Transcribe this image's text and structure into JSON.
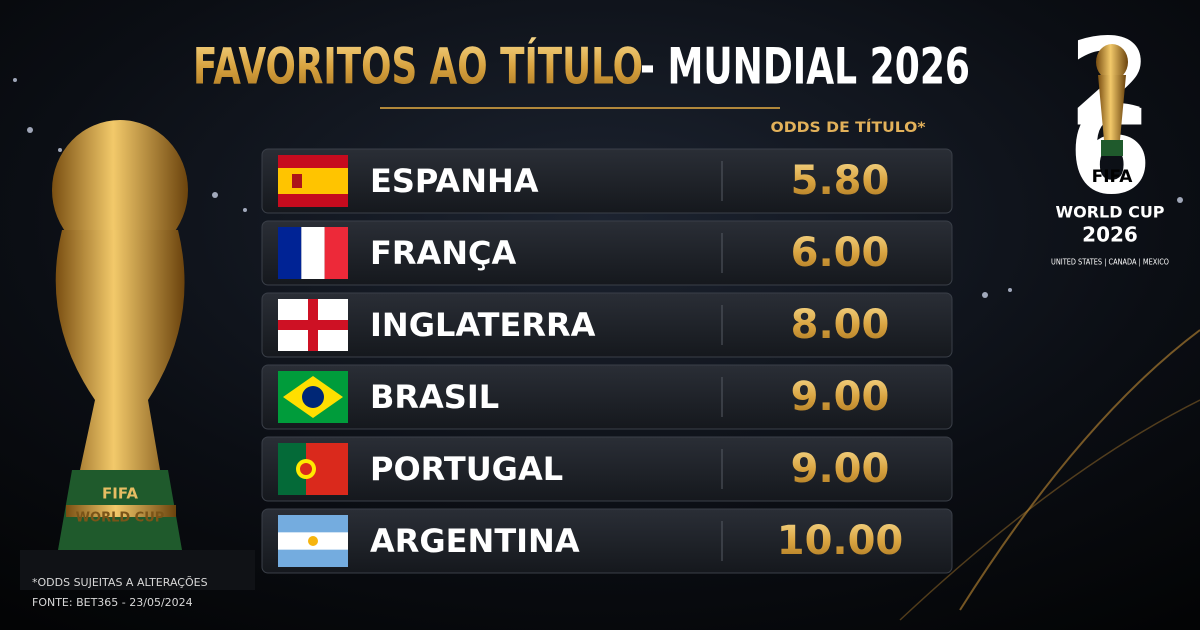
{
  "header": {
    "title_gold": "FAVORITOS AO TÍTULO",
    "title_white": "- MUNDIAL 2026"
  },
  "table": {
    "column_header": "ODDS DE TÍTULO*",
    "rows": [
      [
        "ESPANHA",
        "5.80"
      ],
      [
        "FRANÇA",
        "6.00"
      ],
      [
        "INGLATERRA",
        "8.00"
      ],
      [
        "BRASIL",
        "9.00"
      ],
      [
        "PORTUGAL",
        "9.00"
      ],
      [
        "ARGENTINA",
        "10.00"
      ]
    ]
  },
  "logo": {
    "digit_top": "2",
    "digit_bottom": "6",
    "brand": "FIFA",
    "event": "WORLD CUP",
    "year": "2026",
    "hosts": "UNITED STATES | CANADA | MEXICO"
  },
  "trophy": {
    "line1": "FIFA",
    "line2": "WORLD CUP"
  },
  "footer": {
    "note": "*ODDS SUJEITAS A ALTERAÇÕES",
    "source": "FONTE: BET365 - 23/05/2024"
  }
}
